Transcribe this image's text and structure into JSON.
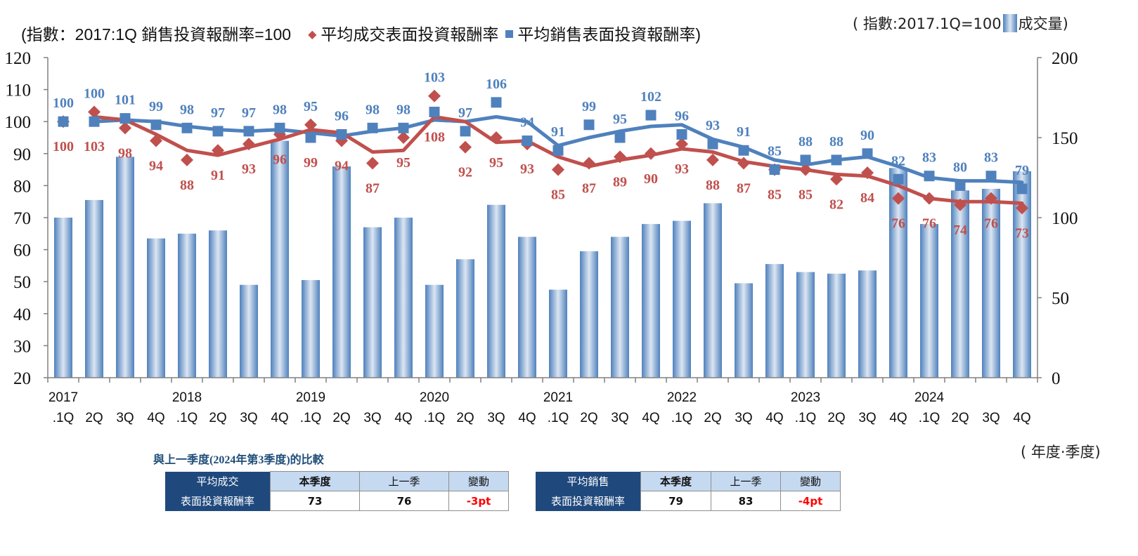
{
  "legend": {
    "left_note": "(指數：2017:1Q 銷售投資報酬率=100",
    "series_transaction": "平均成交表面投資報酬率",
    "series_sales": "平均銷售表面投資報酬率)",
    "right_note": "( 指數:2017.1Q=100",
    "volume": "成交量)"
  },
  "axis_unit_label": "( 年度·季度)",
  "colors": {
    "transaction": "#c0504d",
    "sales": "#4f81bd",
    "bar_edge": "#4f81bd",
    "bar_center": "#dce6f2",
    "axis": "#808080",
    "table_header": "#1f497d",
    "table_col": "#c5d9f1",
    "change": "#ff0000"
  },
  "chart_data": {
    "type": "bar+line",
    "title": "",
    "xlabel": "( 年度·季度)",
    "ylabel_left": "指數 (2017:1Q 銷售投資報酬率=100)",
    "ylabel_right": "成交量 (指數:2017.1Q=100)",
    "ylim_left": [
      20,
      120
    ],
    "yticks_left": [
      20,
      30,
      40,
      50,
      60,
      70,
      80,
      90,
      100,
      110,
      120
    ],
    "ylim_right": [
      0,
      200
    ],
    "yticks_right": [
      0,
      50,
      100,
      150,
      200
    ],
    "grid": false,
    "legend_position": "top",
    "year_labels": [
      "2017",
      "2018",
      "2019",
      "2020",
      "2021",
      "2022",
      "2023",
      "2024"
    ],
    "categories": [
      ".1Q",
      "2Q",
      "3Q",
      "4Q",
      ".1Q",
      "2Q",
      "3Q",
      "4Q",
      ".1Q",
      "2Q",
      "3Q",
      "4Q",
      ".1Q",
      "2Q",
      "3Q",
      "4Q",
      ".1Q",
      "2Q",
      "3Q",
      "4Q",
      ".1Q",
      "2Q",
      "3Q",
      "4Q",
      ".1Q",
      "2Q",
      "3Q",
      "4Q",
      ".1Q",
      "2Q",
      "3Q",
      "4Q"
    ],
    "periods": [
      "2017.1Q",
      "2017.2Q",
      "2017.3Q",
      "2017.4Q",
      "2018.1Q",
      "2018.2Q",
      "2018.3Q",
      "2018.4Q",
      "2019.1Q",
      "2019.2Q",
      "2019.3Q",
      "2019.4Q",
      "2020.1Q",
      "2020.2Q",
      "2020.3Q",
      "2020.4Q",
      "2021.1Q",
      "2021.2Q",
      "2021.3Q",
      "2021.4Q",
      "2022.1Q",
      "2022.2Q",
      "2022.3Q",
      "2022.4Q",
      "2023.1Q",
      "2023.2Q",
      "2023.3Q",
      "2023.4Q",
      "2024.1Q",
      "2024.2Q",
      "2024.3Q",
      "2024.4Q"
    ],
    "series": [
      {
        "name": "平均成交表面投資報酬率",
        "kind": "marker-diamond",
        "axis": "left",
        "values": [
          100,
          103,
          98,
          94,
          88,
          91,
          93,
          96,
          99,
          94,
          87,
          95,
          108,
          92,
          95,
          93,
          85,
          87,
          89,
          90,
          93,
          88,
          87,
          85,
          85,
          82,
          84,
          76,
          76,
          74,
          76,
          73
        ],
        "trendline": "2-period moving average"
      },
      {
        "name": "平均銷售表面投資報酬率",
        "kind": "marker-square",
        "axis": "left",
        "values": [
          100,
          100,
          101,
          99,
          98,
          97,
          97,
          98,
          95,
          96,
          98,
          98,
          103,
          97,
          106,
          94,
          91,
          99,
          95,
          102,
          96,
          93,
          91,
          85,
          88,
          88,
          90,
          82,
          83,
          80,
          83,
          79
        ],
        "trendline": "2-period moving average"
      },
      {
        "name": "成交量",
        "kind": "bar",
        "axis": "right",
        "values": [
          100,
          111,
          138,
          87,
          90,
          92,
          58,
          148,
          61,
          132,
          94,
          100,
          58,
          74,
          108,
          88,
          55,
          79,
          88,
          96,
          98,
          109,
          59,
          71,
          66,
          65,
          67,
          131,
          96,
          117,
          118,
          129
        ]
      }
    ]
  },
  "comparison": {
    "title": "與上一季度(2024年第3季度)的比較",
    "columns": [
      "本季度",
      "上一季",
      "變動"
    ],
    "tables": [
      {
        "row_label_line1": "平均成交",
        "row_label_line2": "表面投資報酬率",
        "current": "73",
        "previous": "76",
        "change": "-3pt"
      },
      {
        "row_label_line1": "平均銷售",
        "row_label_line2": "表面投資報酬率",
        "current": "79",
        "previous": "83",
        "change": "-4pt"
      }
    ]
  }
}
